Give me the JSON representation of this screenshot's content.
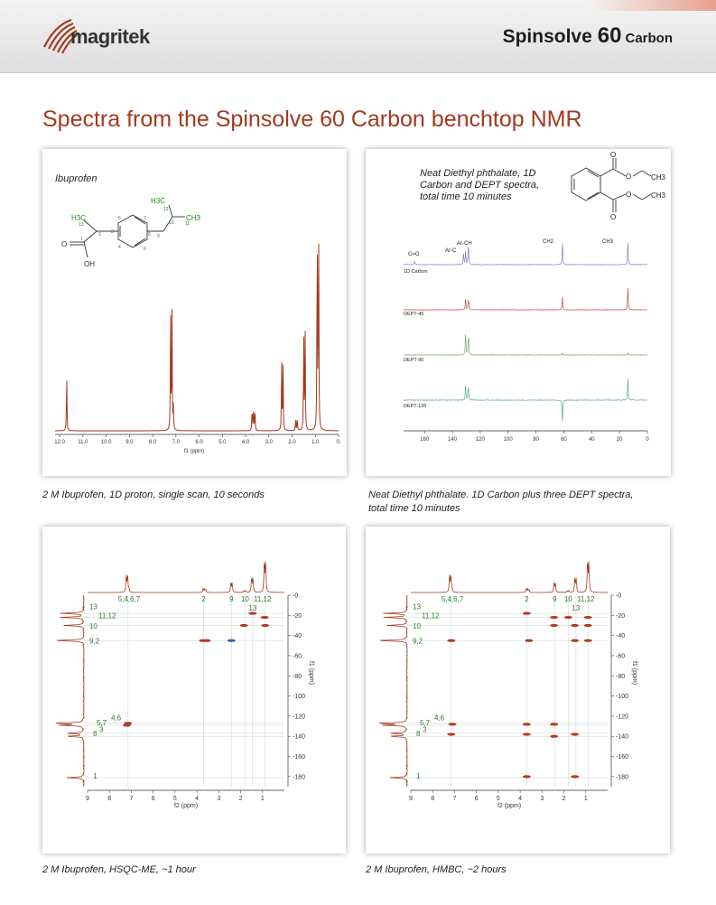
{
  "header": {
    "brand": "magritek",
    "product_name": "Spinsolve",
    "product_number": "60",
    "product_variant": "Carbon",
    "brand_color": "#a33a1e"
  },
  "page_title": "Spectra from the Spinsolve 60 Carbon benchtop NMR",
  "panels": {
    "ibuprofen": {
      "label": "Ibuprofen",
      "caption": "2 M Ibuprofen, 1D proton, single scan, 10 seconds",
      "axis_label": "f1 (ppm)",
      "structure_labels": [
        "H3C",
        "13",
        "2",
        "3",
        "4",
        "5",
        "6",
        "7",
        "8",
        "9",
        "10",
        "11",
        "12",
        "CH3",
        "H3C",
        "O",
        "OH",
        "1"
      ]
    },
    "dept": {
      "label": "Neat Diethyl phthalate, 1D Carbon and DEPT spectra, total time 10 minutes",
      "label_lines": [
        "Neat Diethyl phthalate, 1D",
        "Carbon and DEPT spectra,",
        "total time 10 minutes"
      ],
      "caption_lines": [
        "Neat Diethyl phthalate. 1D Carbon plus three DEPT spectra,",
        "total time 10 minutes"
      ],
      "peak_labels": [
        "C=O",
        "Ar-C",
        "Ar-CH",
        "CH2",
        "CH3"
      ],
      "trace_labels": [
        "1D Carbon",
        "DEPT-45",
        "DEPT-90",
        "DEPT-135"
      ],
      "structure_labels": [
        "O",
        "O",
        "CH3",
        "O",
        "O",
        "CH3"
      ]
    },
    "hsqc": {
      "caption": "2 M Ibuprofen, HSQC-ME,  ~1 hour",
      "x_axis_label": "f2 (ppm)",
      "y_axis_label": "f1 (ppm)"
    },
    "hmbc": {
      "caption": "2 M Ibuprofen, HMBC,  ~2 hours",
      "x_axis_label": "f2 (ppm)",
      "y_axis_label": "f1 (ppm)"
    },
    "assignments_top": [
      "5,4,6,7",
      "2",
      "9",
      "10",
      "11,12",
      "13"
    ],
    "assignments_left": [
      "13",
      "11,12",
      "10",
      "9,2",
      "5,7",
      "4,6",
      "8",
      "3",
      "1"
    ]
  },
  "chart_data": [
    {
      "type": "line",
      "title": "Ibuprofen",
      "xlabel": "f1 (ppm)",
      "ylabel": "",
      "xlim": [
        12.2,
        0
      ],
      "x_ticks": [
        "12.0",
        "11.0",
        "10.0",
        "9.0",
        "8.0",
        "7.0",
        "6.0",
        "5.0",
        "4.0",
        "3.0",
        "2.0",
        "1.0",
        "0."
      ],
      "peaks": [
        {
          "x": 11.7,
          "y": 0.26
        },
        {
          "x": 7.23,
          "y": 0.52
        },
        {
          "x": 7.17,
          "y": 0.52
        },
        {
          "x": 7.11,
          "y": 0.1
        },
        {
          "x": 3.72,
          "y": 0.11
        },
        {
          "x": 3.66,
          "y": 0.11
        },
        {
          "x": 3.6,
          "y": 0.09
        },
        {
          "x": 2.45,
          "y": 0.3
        },
        {
          "x": 2.39,
          "y": 0.28
        },
        {
          "x": 1.85,
          "y": 0.05
        },
        {
          "x": 1.78,
          "y": 0.06
        },
        {
          "x": 1.5,
          "y": 0.44
        },
        {
          "x": 1.44,
          "y": 0.44
        },
        {
          "x": 0.92,
          "y": 0.97
        },
        {
          "x": 0.86,
          "y": 0.94
        }
      ]
    },
    {
      "type": "line",
      "title": "",
      "xlabel": "",
      "xlim": [
        175,
        0
      ],
      "x_ticks": [
        "160",
        "140",
        "120",
        "100",
        "80",
        "60",
        "40",
        "20",
        "0"
      ],
      "series": [
        {
          "name": "1D Carbon",
          "color": "#7a7fc8",
          "peaks": [
            {
              "x": 167,
              "y": 0.15
            },
            {
              "x": 132,
              "y": 0.45
            },
            {
              "x": 130.5,
              "y": 0.55
            },
            {
              "x": 128.5,
              "y": 0.85
            },
            {
              "x": 61,
              "y": 0.85
            },
            {
              "x": 14,
              "y": 0.85
            }
          ]
        },
        {
          "name": "DEPT-45",
          "color": "#c0503a",
          "peaks": [
            {
              "x": 130.5,
              "y": 0.45
            },
            {
              "x": 128.5,
              "y": 0.45
            },
            {
              "x": 61,
              "y": 0.5
            },
            {
              "x": 14,
              "y": 0.85
            }
          ]
        },
        {
          "name": "DEPT-90",
          "color": "#7aa86e",
          "peaks": [
            {
              "x": 130.5,
              "y": 0.85
            },
            {
              "x": 128.5,
              "y": 0.85
            },
            {
              "x": 61,
              "y": 0.08
            },
            {
              "x": 14,
              "y": 0.08
            }
          ]
        },
        {
          "name": "DEPT-135",
          "color": "#5aa89a",
          "peaks": [
            {
              "x": 130.5,
              "y": 0.6
            },
            {
              "x": 128.5,
              "y": 0.6
            },
            {
              "x": 61,
              "y": -0.85
            },
            {
              "x": 14,
              "y": 0.85
            }
          ]
        }
      ]
    },
    {
      "type": "scatter",
      "title": "",
      "xlabel": "f2 (ppm)",
      "ylabel": "f1 (ppm)",
      "xlim": [
        9,
        0
      ],
      "ylim": [
        0,
        190
      ],
      "x_ticks": [
        "9",
        "8",
        "7",
        "6",
        "5",
        "4",
        "3",
        "2",
        "1"
      ],
      "y_ticks": [
        "0",
        "20",
        "40",
        "60",
        "80",
        "100",
        "120",
        "140",
        "160",
        "180"
      ],
      "cross_peaks": [
        {
          "x": 7.15,
          "y": 127,
          "color": "#b23a1e"
        },
        {
          "x": 7.2,
          "y": 129,
          "color": "#b23a1e"
        },
        {
          "x": 3.72,
          "y": 45,
          "color": "#b23a1e"
        },
        {
          "x": 3.55,
          "y": 45,
          "color": "#b23a1e"
        },
        {
          "x": 2.42,
          "y": 45,
          "color": "#2a5fb0"
        },
        {
          "x": 1.85,
          "y": 30,
          "color": "#b23a1e"
        },
        {
          "x": 1.45,
          "y": 18,
          "color": "#b23a1e"
        },
        {
          "x": 0.9,
          "y": 22,
          "color": "#b23a1e"
        },
        {
          "x": 0.88,
          "y": 30,
          "color": "#b23a1e"
        }
      ]
    },
    {
      "type": "scatter",
      "title": "",
      "xlabel": "f2 (ppm)",
      "ylabel": "f1 (ppm)",
      "xlim": [
        9,
        0
      ],
      "ylim": [
        0,
        190
      ],
      "x_ticks": [
        "9",
        "8",
        "7",
        "6",
        "5",
        "4",
        "3",
        "2",
        "1"
      ],
      "y_ticks": [
        "0",
        "20",
        "40",
        "60",
        "80",
        "100",
        "120",
        "140",
        "160",
        "180"
      ],
      "cross_peaks": [
        {
          "x": 7.15,
          "y": 45,
          "color": "#b23a1e"
        },
        {
          "x": 7.1,
          "y": 128,
          "color": "#b23a1e"
        },
        {
          "x": 7.15,
          "y": 138,
          "color": "#b23a1e"
        },
        {
          "x": 3.7,
          "y": 18,
          "color": "#b23a1e"
        },
        {
          "x": 3.6,
          "y": 45,
          "color": "#b23a1e"
        },
        {
          "x": 3.7,
          "y": 128,
          "color": "#b23a1e"
        },
        {
          "x": 3.7,
          "y": 138,
          "color": "#b23a1e"
        },
        {
          "x": 3.7,
          "y": 180,
          "color": "#b23a1e"
        },
        {
          "x": 2.45,
          "y": 22,
          "color": "#b23a1e"
        },
        {
          "x": 2.45,
          "y": 30,
          "color": "#b23a1e"
        },
        {
          "x": 2.45,
          "y": 128,
          "color": "#b23a1e"
        },
        {
          "x": 2.45,
          "y": 140,
          "color": "#b23a1e"
        },
        {
          "x": 1.8,
          "y": 22,
          "color": "#b23a1e"
        },
        {
          "x": 1.5,
          "y": 30,
          "color": "#b23a1e"
        },
        {
          "x": 1.5,
          "y": 45,
          "color": "#b23a1e"
        },
        {
          "x": 1.5,
          "y": 138,
          "color": "#b23a1e"
        },
        {
          "x": 1.5,
          "y": 180,
          "color": "#b23a1e"
        },
        {
          "x": 0.9,
          "y": 22,
          "color": "#b23a1e"
        },
        {
          "x": 0.9,
          "y": 30,
          "color": "#b23a1e"
        },
        {
          "x": 0.9,
          "y": 45,
          "color": "#b23a1e"
        }
      ]
    }
  ]
}
